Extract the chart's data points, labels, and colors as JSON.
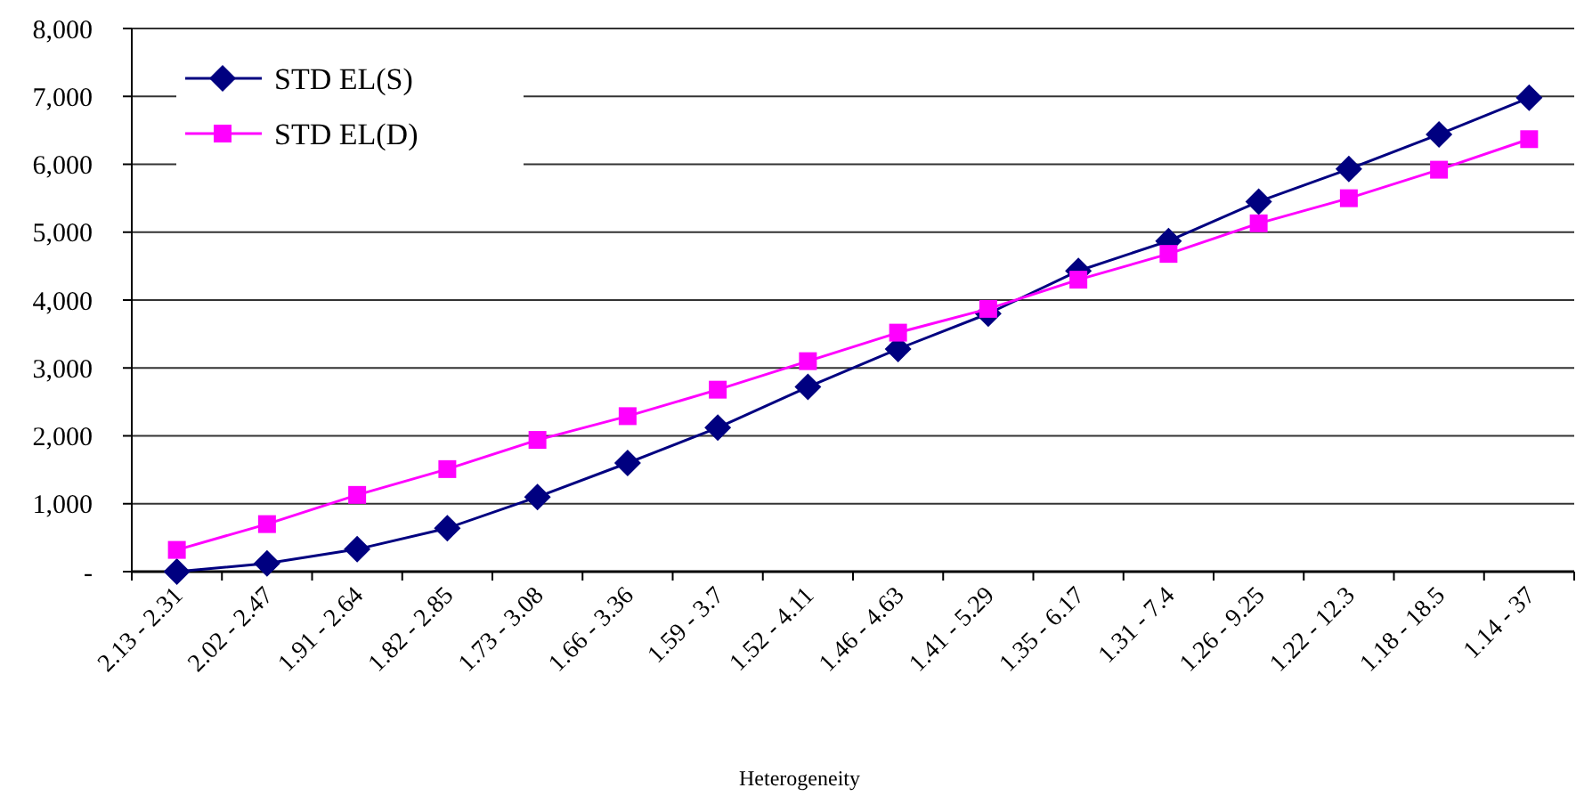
{
  "chart_data": {
    "type": "line",
    "xlabel": "Heterogeneity",
    "categories": [
      "2.13 - 2.31",
      "2.02 - 2.47",
      "1.91 - 2.64",
      "1.82 - 2.85",
      "1.73 - 3.08",
      "1.66 - 3.36",
      "1.59 - 3.7",
      "1.52 - 4.11",
      "1.46 - 4.63",
      "1.41 - 5.29",
      "1.35 - 6.17",
      "1.31 - 7.4",
      "1.26 - 9.25",
      "1.22 - 12.3",
      "1.18 - 18.5",
      "1.14 - 37"
    ],
    "series": [
      {
        "name": "STD EL(S)",
        "color": "#000080",
        "marker": "diamond",
        "values": [
          0,
          120,
          330,
          640,
          1100,
          1600,
          2120,
          2720,
          3280,
          3800,
          4430,
          4870,
          5450,
          5930,
          6440,
          6980
        ]
      },
      {
        "name": "STD EL(D)",
        "color": "#ff00ff",
        "marker": "square",
        "values": [
          320,
          700,
          1130,
          1510,
          1940,
          2290,
          2680,
          3100,
          3520,
          3870,
          4300,
          4680,
          5130,
          5500,
          5920,
          6370
        ]
      }
    ],
    "ylim": [
      0,
      8000
    ],
    "yticks": [
      {
        "value": 0,
        "label": "-"
      },
      {
        "value": 1000,
        "label": "1,000"
      },
      {
        "value": 2000,
        "label": "2,000"
      },
      {
        "value": 3000,
        "label": "3,000"
      },
      {
        "value": 4000,
        "label": "4,000"
      },
      {
        "value": 5000,
        "label": "5,000"
      },
      {
        "value": 6000,
        "label": "6,000"
      },
      {
        "value": 7000,
        "label": "7,000"
      },
      {
        "value": 8000,
        "label": "8,000"
      }
    ],
    "grid": "y",
    "legend": "top left",
    "line_style": "solid"
  }
}
